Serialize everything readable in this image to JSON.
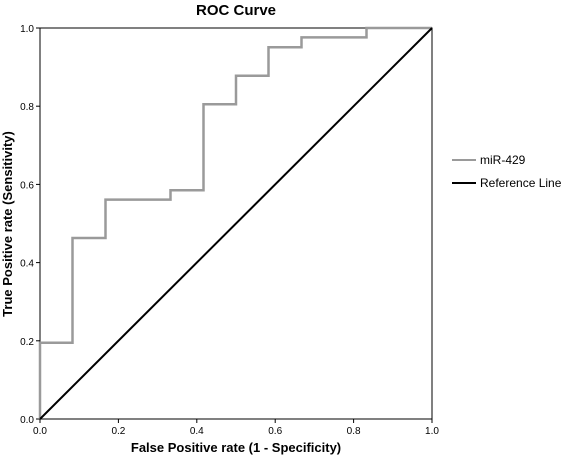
{
  "chart_data": {
    "type": "line",
    "title": "ROC Curve",
    "xlabel": "False Positive rate (1 - Specificity)",
    "ylabel": "True Positive rate (Sensitivity)",
    "xlim": [
      0,
      1
    ],
    "ylim": [
      0,
      1
    ],
    "x_ticks": [
      "0.0",
      "0.2",
      "0.4",
      "0.6",
      "0.8",
      "1.0"
    ],
    "y_ticks": [
      "0.0",
      "0.2",
      "0.4",
      "0.6",
      "0.8",
      "1.0"
    ],
    "grid": false,
    "legend_position": "right",
    "series": [
      {
        "name": "miR-429",
        "color": "#9a9a9a",
        "step": true,
        "points": [
          [
            0.0,
            0.0
          ],
          [
            0.0,
            0.195
          ],
          [
            0.083,
            0.195
          ],
          [
            0.083,
            0.463
          ],
          [
            0.167,
            0.463
          ],
          [
            0.167,
            0.561
          ],
          [
            0.333,
            0.561
          ],
          [
            0.333,
            0.585
          ],
          [
            0.417,
            0.585
          ],
          [
            0.417,
            0.805
          ],
          [
            0.5,
            0.805
          ],
          [
            0.5,
            0.878
          ],
          [
            0.583,
            0.878
          ],
          [
            0.583,
            0.951
          ],
          [
            0.667,
            0.951
          ],
          [
            0.667,
            0.976
          ],
          [
            0.833,
            0.976
          ],
          [
            0.833,
            1.0
          ],
          [
            1.0,
            1.0
          ]
        ]
      },
      {
        "name": "Reference Line",
        "color": "#000000",
        "step": false,
        "points": [
          [
            0.0,
            0.0
          ],
          [
            1.0,
            1.0
          ]
        ]
      }
    ]
  }
}
